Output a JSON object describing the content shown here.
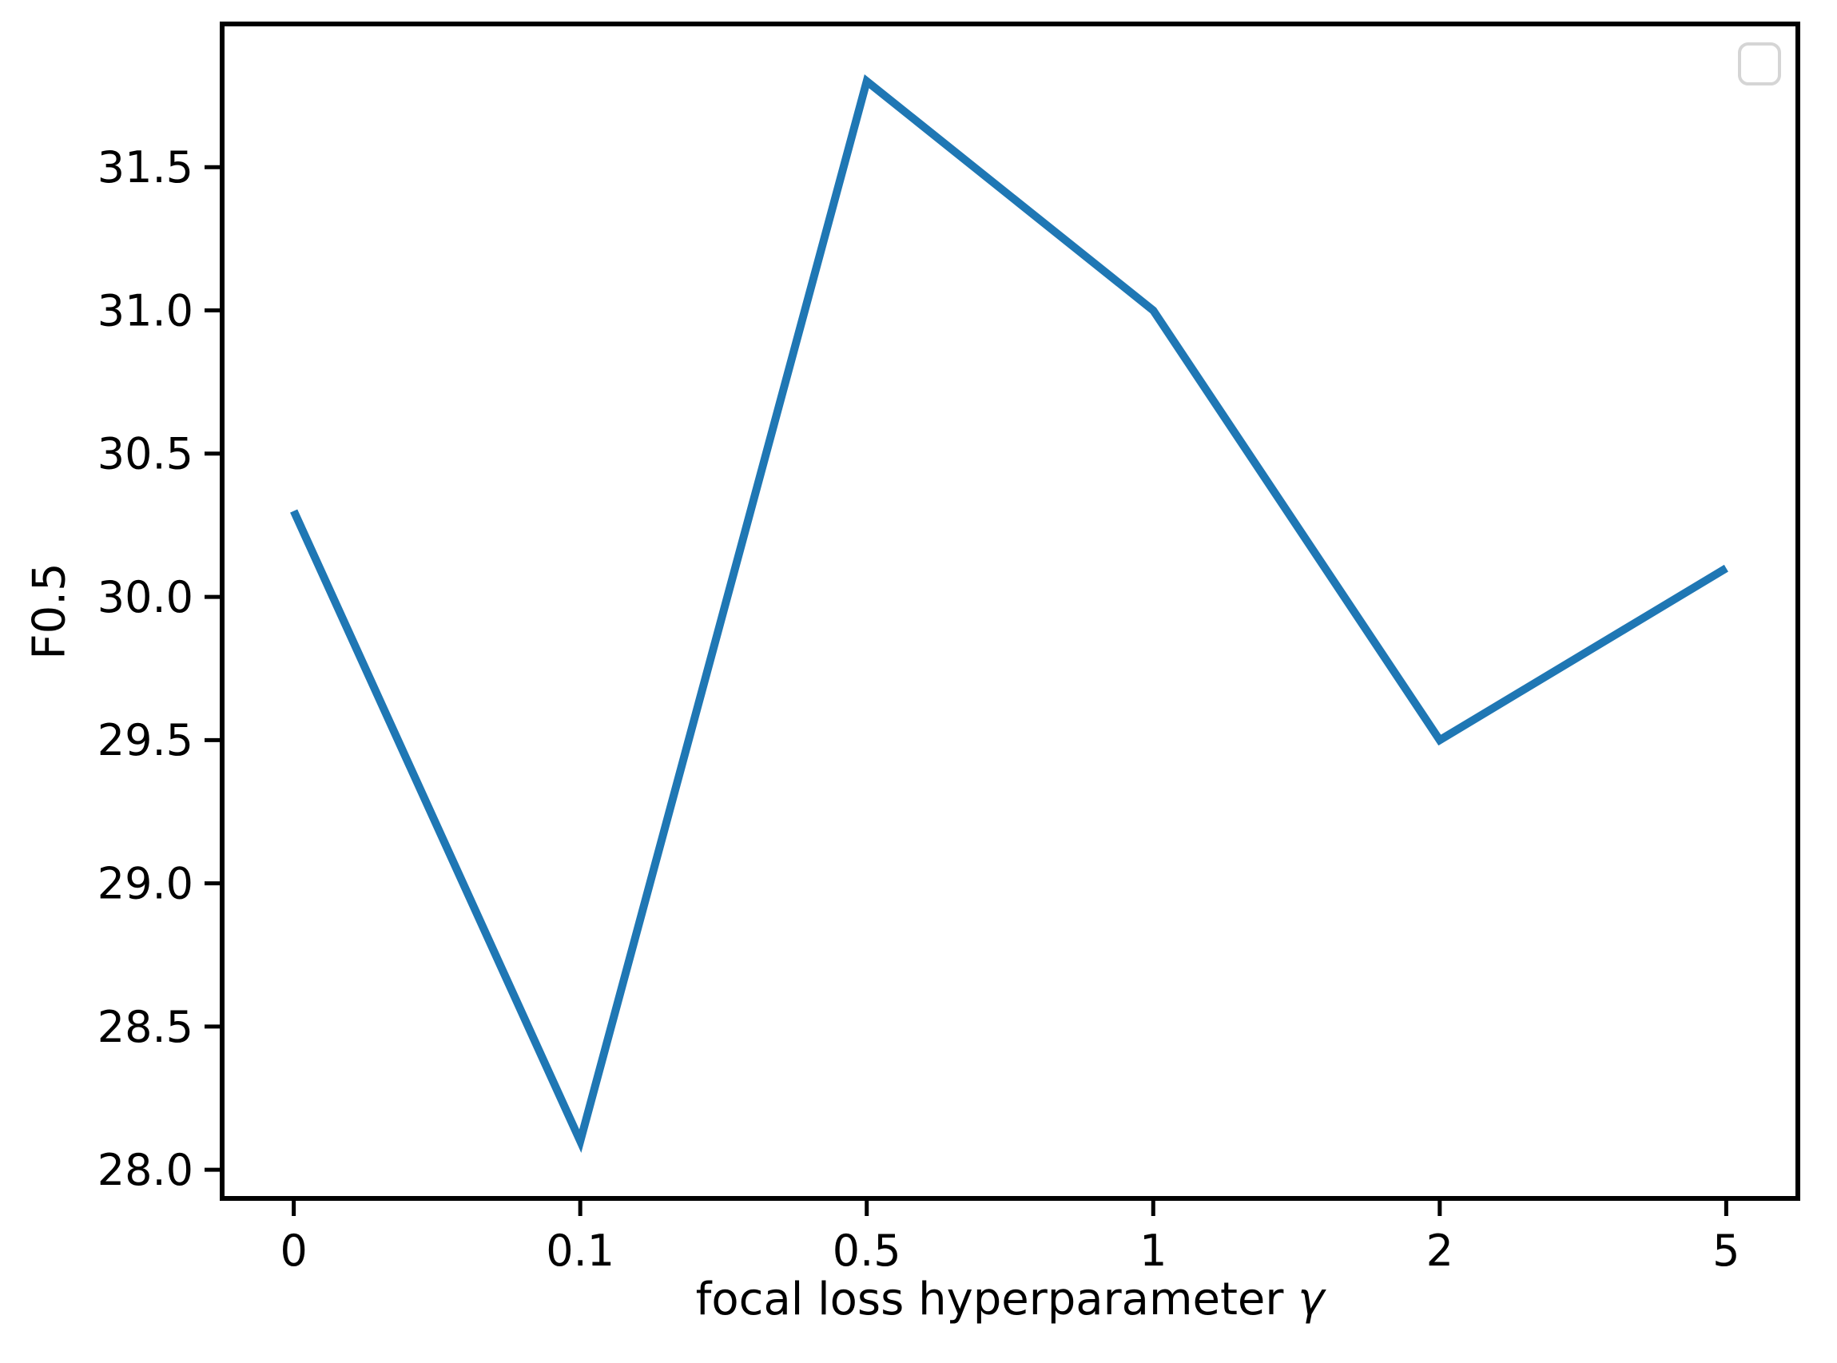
{
  "chart_data": {
    "type": "line",
    "title": "",
    "xlabel": "focal loss hyperparameter γ",
    "xlabel_text": "focal loss hyperparameter ",
    "xlabel_symbol": "γ",
    "ylabel": "F0.5",
    "x": [
      0,
      0.1,
      0.5,
      1,
      2,
      5
    ],
    "x_scale": "categorical-even-spacing",
    "categories": [
      "0",
      "0.1",
      "0.5",
      "1",
      "2",
      "5"
    ],
    "series": [
      {
        "name": "",
        "values": [
          30.3,
          28.1,
          31.8,
          31.0,
          29.5,
          30.1
        ]
      }
    ],
    "line_color": "#1f77b4",
    "yticks": [
      28.0,
      28.5,
      29.0,
      29.5,
      30.0,
      30.5,
      31.0,
      31.5
    ],
    "ytick_labels": [
      "28.0",
      "28.5",
      "29.0",
      "29.5",
      "30.0",
      "30.5",
      "31.0",
      "31.5"
    ],
    "ylim": [
      27.9,
      32.0
    ],
    "grid": false,
    "legend": {
      "visible": true,
      "entries": [],
      "position": "upper-right"
    },
    "axis_color": "#000000",
    "legend_border_color": "#d5d5d5",
    "background": "#ffffff"
  }
}
